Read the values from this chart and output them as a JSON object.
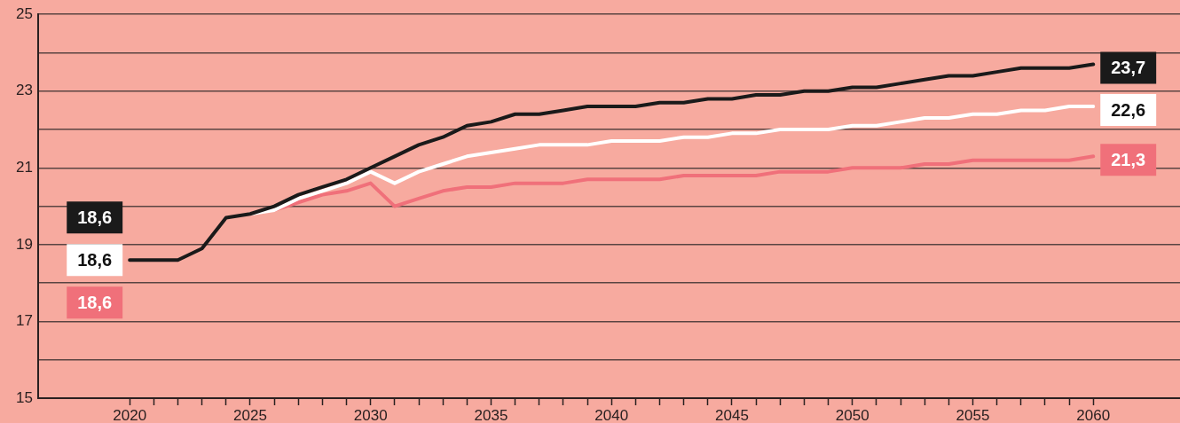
{
  "chart_data": {
    "type": "line",
    "x": [
      2020,
      2021,
      2022,
      2023,
      2024,
      2025,
      2026,
      2027,
      2028,
      2029,
      2030,
      2031,
      2032,
      2033,
      2034,
      2035,
      2036,
      2037,
      2038,
      2039,
      2040,
      2041,
      2042,
      2043,
      2044,
      2045,
      2046,
      2047,
      2048,
      2049,
      2050,
      2051,
      2052,
      2053,
      2054,
      2055,
      2056,
      2057,
      2058,
      2059,
      2060
    ],
    "series": [
      {
        "color": "#1a1a1a",
        "values": [
          18.6,
          18.6,
          18.6,
          18.9,
          19.7,
          19.8,
          20.0,
          20.3,
          20.5,
          20.7,
          21.0,
          21.3,
          21.6,
          21.8,
          22.1,
          22.2,
          22.4,
          22.4,
          22.5,
          22.6,
          22.6,
          22.6,
          22.7,
          22.7,
          22.8,
          22.8,
          22.9,
          22.9,
          23.0,
          23.0,
          23.1,
          23.1,
          23.2,
          23.3,
          23.4,
          23.4,
          23.5,
          23.6,
          23.6,
          23.6,
          23.7
        ],
        "value_labels": [
          null,
          null,
          null,
          null,
          null,
          null,
          null,
          null,
          null,
          null,
          null,
          null,
          null,
          null,
          null,
          null,
          null,
          null,
          null,
          null,
          null,
          null,
          null,
          null,
          null,
          null,
          null,
          null,
          null,
          null,
          null,
          null,
          null,
          null,
          null,
          null,
          null,
          null,
          null,
          null,
          "23,7"
        ]
      },
      {
        "color": "#ffffff",
        "values": [
          null,
          null,
          null,
          null,
          null,
          19.8,
          19.9,
          20.2,
          20.4,
          20.6,
          20.9,
          20.6,
          20.9,
          21.1,
          21.3,
          21.4,
          21.5,
          21.6,
          21.6,
          21.6,
          21.7,
          21.7,
          21.7,
          21.8,
          21.8,
          21.9,
          21.9,
          22.0,
          22.0,
          22.0,
          22.1,
          22.1,
          22.2,
          22.3,
          22.3,
          22.4,
          22.4,
          22.5,
          22.5,
          22.6,
          22.6
        ],
        "value_labels": [
          null,
          null,
          null,
          null,
          null,
          null,
          null,
          null,
          null,
          null,
          null,
          null,
          null,
          null,
          null,
          null,
          null,
          null,
          null,
          null,
          null,
          null,
          null,
          null,
          null,
          null,
          null,
          null,
          null,
          null,
          null,
          null,
          null,
          null,
          null,
          null,
          null,
          null,
          null,
          null,
          "22,6"
        ]
      },
      {
        "color": "#f0707a",
        "values": [
          null,
          null,
          null,
          null,
          null,
          null,
          19.9,
          20.1,
          20.3,
          20.4,
          20.6,
          20.0,
          20.2,
          20.4,
          20.5,
          20.5,
          20.6,
          20.6,
          20.6,
          20.7,
          20.7,
          20.7,
          20.7,
          20.8,
          20.8,
          20.8,
          20.8,
          20.9,
          20.9,
          20.9,
          21.0,
          21.0,
          21.0,
          21.1,
          21.1,
          21.2,
          21.2,
          21.2,
          21.2,
          21.2,
          21.3
        ],
        "value_labels": [
          null,
          null,
          null,
          null,
          null,
          null,
          null,
          null,
          null,
          null,
          null,
          null,
          null,
          null,
          null,
          null,
          null,
          null,
          null,
          null,
          null,
          null,
          null,
          null,
          null,
          null,
          null,
          null,
          null,
          null,
          null,
          null,
          null,
          null,
          null,
          null,
          null,
          null,
          null,
          null,
          "21,3"
        ]
      }
    ],
    "annotations": [
      "18,6",
      "18,6",
      "18,6"
    ],
    "xlim": [
      2016.2,
      2063.6
    ],
    "xticks": [
      {
        "value": 2020,
        "label": "2020"
      },
      {
        "value": 2021,
        "label": null
      },
      {
        "value": 2022,
        "label": null
      },
      {
        "value": 2023,
        "label": null
      },
      {
        "value": 2024,
        "label": null
      },
      {
        "value": 2025,
        "label": "2025"
      },
      {
        "value": 2026,
        "label": null
      },
      {
        "value": 2027,
        "label": null
      },
      {
        "value": 2028,
        "label": null
      },
      {
        "value": 2029,
        "label": null
      },
      {
        "value": 2030,
        "label": "2030"
      },
      {
        "value": 2031,
        "label": null
      },
      {
        "value": 2032,
        "label": null
      },
      {
        "value": 2033,
        "label": null
      },
      {
        "value": 2034,
        "label": null
      },
      {
        "value": 2035,
        "label": "2035"
      },
      {
        "value": 2036,
        "label": null
      },
      {
        "value": 2037,
        "label": null
      },
      {
        "value": 2038,
        "label": null
      },
      {
        "value": 2039,
        "label": null
      },
      {
        "value": 2040,
        "label": "2040"
      },
      {
        "value": 2041,
        "label": null
      },
      {
        "value": 2042,
        "label": null
      },
      {
        "value": 2043,
        "label": null
      },
      {
        "value": 2044,
        "label": null
      },
      {
        "value": 2045,
        "label": "2045"
      },
      {
        "value": 2046,
        "label": null
      },
      {
        "value": 2047,
        "label": null
      },
      {
        "value": 2048,
        "label": null
      },
      {
        "value": 2049,
        "label": null
      },
      {
        "value": 2050,
        "label": "2050"
      },
      {
        "value": 2051,
        "label": null
      },
      {
        "value": 2052,
        "label": null
      },
      {
        "value": 2053,
        "label": null
      },
      {
        "value": 2054,
        "label": null
      },
      {
        "value": 2055,
        "label": "2055"
      },
      {
        "value": 2056,
        "label": null
      },
      {
        "value": 2057,
        "label": null
      },
      {
        "value": 2058,
        "label": null
      },
      {
        "value": 2059,
        "label": null
      },
      {
        "value": 2060,
        "label": "2060"
      }
    ],
    "ylim": [
      15,
      25
    ],
    "yticks": [
      15,
      {
        "value": 16,
        "label": null
      },
      17,
      {
        "value": 18,
        "label": null
      },
      19,
      {
        "value": 20,
        "label": null
      },
      21,
      {
        "value": 22,
        "label": null
      },
      23,
      {
        "value": 24,
        "label": null
      },
      25
    ],
    "grid": "y",
    "legend": false,
    "marker": "none",
    "line_style": "solid"
  }
}
